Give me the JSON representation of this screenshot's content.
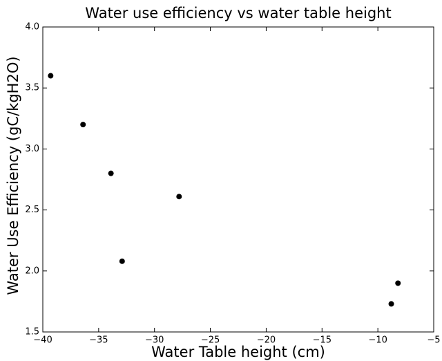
{
  "chart_data": {
    "type": "scatter",
    "title": "Water use efficiency vs water table height",
    "x_label": "Water Table height (cm)",
    "y_label": "Water Use Efficiency (gC/kgH2O)",
    "x": [
      -39.3,
      -36.4,
      -33.9,
      -27.8,
      -32.9,
      -8.8,
      -8.2
    ],
    "values": [
      3.6,
      3.2,
      2.8,
      2.61,
      2.08,
      1.73,
      1.9
    ],
    "color": "#000000",
    "xlim": [
      -40,
      -5
    ],
    "xticks": [
      {
        "value": -40,
        "label": "−40"
      },
      {
        "value": -35,
        "label": "−35"
      },
      {
        "value": -30,
        "label": "−30"
      },
      {
        "value": -25,
        "label": "−25"
      },
      {
        "value": -20,
        "label": "−20"
      },
      {
        "value": -15,
        "label": "−15"
      },
      {
        "value": -10,
        "label": "−10"
      },
      {
        "value": -5,
        "label": "−5"
      }
    ],
    "ylim": [
      1.5,
      4.0
    ],
    "yticks": [
      1.5,
      {
        "value": 2,
        "label": "2.0"
      },
      2.5,
      {
        "value": 3,
        "label": "3.0"
      },
      3.5,
      {
        "value": 4,
        "label": "4.0"
      }
    ],
    "grid": false
  }
}
